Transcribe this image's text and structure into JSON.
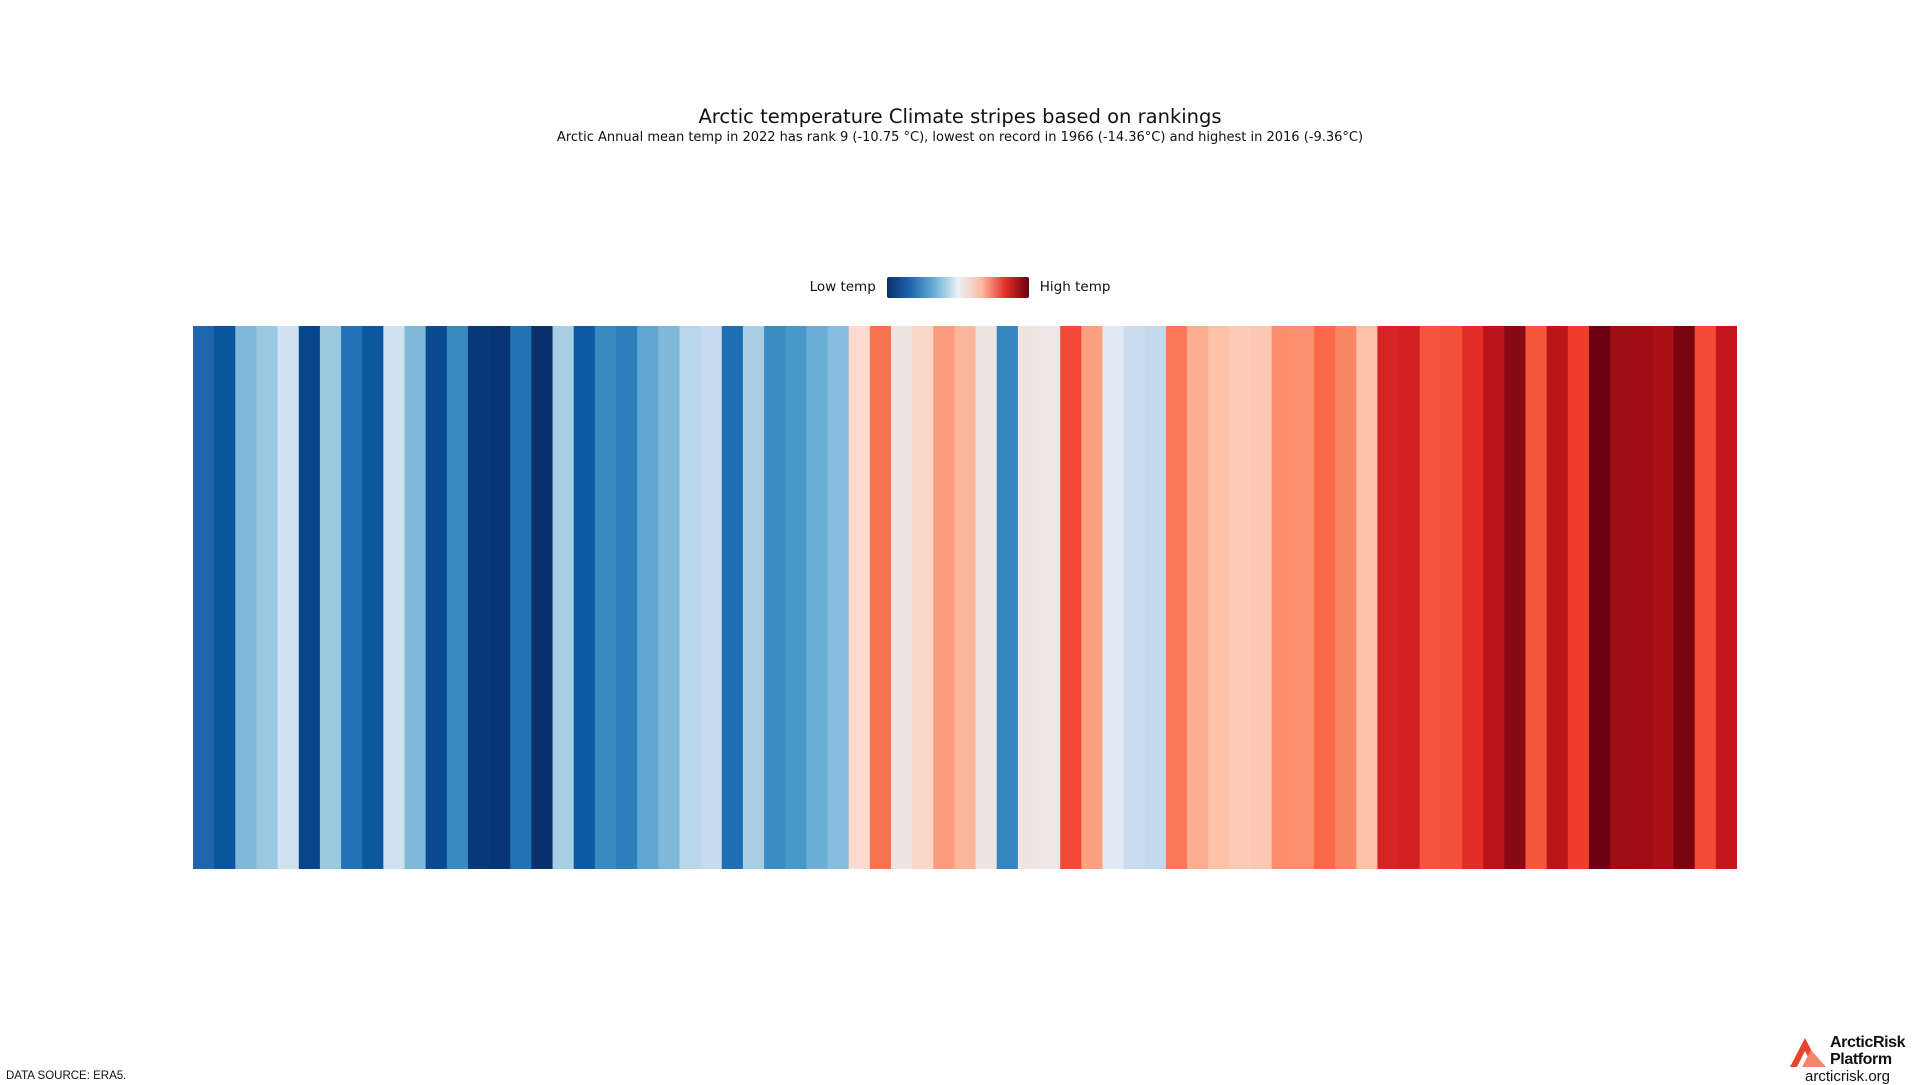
{
  "header": {
    "title": "Arctic temperature Climate stripes based on rankings",
    "subtitle": "Arctic Annual mean temp in 2022 has rank 9 (-10.75 °C), lowest on record in 1966 (-14.36°C) and highest in 2016 (-9.36°C)"
  },
  "legend": {
    "low_label": "Low temp",
    "high_label": "High temp"
  },
  "chart_data": {
    "type": "heatmap",
    "title": "Arctic temperature Climate stripes based on rankings",
    "subtitle": "Arctic Annual mean temp in 2022 has rank 9 (-10.75 °C), lowest on record in 1966 (-14.36°C) and highest in 2016 (-9.36°C)",
    "colormap": "RdBu_r",
    "colors": [
      "#2166ac",
      "#0b559f",
      "#7fb9da",
      "#9ac8e0",
      "#d0e1f2",
      "#08468b",
      "#9ac8e0",
      "#2372b6",
      "#0d57a1",
      "#d0e1f2",
      "#7fb9da",
      "#084b93",
      "#3a8ac2",
      "#083979",
      "#083471",
      "#2372b6",
      "#08306b",
      "#a9cfe5",
      "#0d5aa2",
      "#3a8ac2",
      "#2e7ebc",
      "#5fa6d1",
      "#7fb9da",
      "#b9d6ea",
      "#c6dbef",
      "#1f6eb3",
      "#a9cfe5",
      "#3c8cc3",
      "#4a97c9",
      "#6aaed6",
      "#86bcdd",
      "#fcdad0",
      "#f6734d",
      "#efe4e2",
      "#fcd6c7",
      "#fc9c7c",
      "#fcb69c",
      "#efe4e2",
      "#3585bf",
      "#f0e4e2",
      "#efe6e6",
      "#f24a35",
      "#fca082",
      "#e1eaf4",
      "#cadcee",
      "#c2d8ec",
      "#fb7757",
      "#fcad90",
      "#fcc2aa",
      "#fdcbb6",
      "#fdc7b2",
      "#fc8e6e",
      "#fb9070",
      "#fb6949",
      "#fc8566",
      "#fcc1a8",
      "#d62323",
      "#d21f20",
      "#f5533b",
      "#f4503a",
      "#e22e27",
      "#b81419",
      "#870a14",
      "#f6583e",
      "#bb151a",
      "#ef3c2c",
      "#6b010e",
      "#9e0d14",
      "#a00d15",
      "#aa1016",
      "#780410",
      "#f24a35",
      "#c2181c"
    ],
    "stripe_count": 73,
    "legend": [
      "Low temp",
      "High temp"
    ],
    "color_scale": [
      "#08306b",
      "#2166ac",
      "#6aaed6",
      "#eaf1f8",
      "#fcbba1",
      "#e32f27",
      "#67000d"
    ],
    "source": "DATA SOURCE: ERA5."
  },
  "footer": {
    "source": "DATA SOURCE: ERA5.",
    "brand_line1": "ArcticRisk",
    "brand_line2": "Platform",
    "url": "arcticrisk.org"
  },
  "colors": {
    "logo_dark": "#e8442f",
    "logo_light": "#f7836a"
  }
}
